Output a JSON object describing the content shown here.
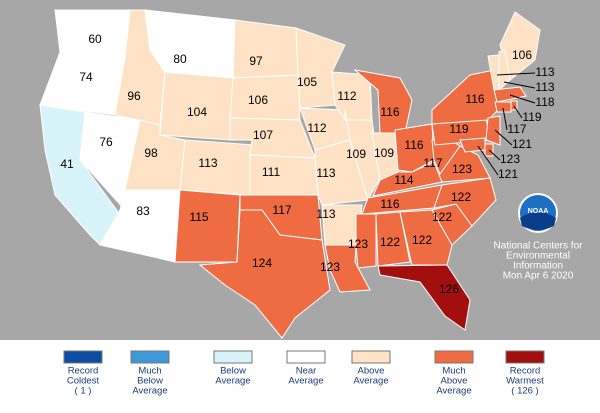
{
  "states": [
    {
      "rank": 60,
      "color": "#ffffff"
    },
    {
      "rank": 74,
      "color": "#ffffff"
    },
    {
      "rank": 41,
      "color": "#d9f3fb"
    },
    {
      "rank": 76,
      "color": "#ffffff"
    },
    {
      "rank": 96,
      "color": "#fde2c5"
    },
    {
      "rank": 80,
      "color": "#ffffff"
    },
    {
      "rank": 104,
      "color": "#fde2c5"
    },
    {
      "rank": 98,
      "color": "#fde2c5"
    },
    {
      "rank": 83,
      "color": "#ffffff"
    },
    {
      "rank": 113,
      "color": "#fde2c5"
    },
    {
      "rank": 115,
      "color": "#ef6b42"
    },
    {
      "rank": 97,
      "color": "#fde2c5"
    },
    {
      "rank": 106,
      "color": "#fde2c5"
    },
    {
      "rank": 107,
      "color": "#fde2c5"
    },
    {
      "rank": 111,
      "color": "#fde2c5"
    },
    {
      "rank": 117,
      "color": "#ef6b42"
    },
    {
      "rank": 124,
      "color": "#ef6b42"
    },
    {
      "rank": 105,
      "color": "#fde2c5"
    },
    {
      "rank": 112,
      "color": "#fde2c5"
    },
    {
      "rank": 113,
      "color": "#fde2c5"
    },
    {
      "rank": 113,
      "color": "#fde2c5"
    },
    {
      "rank": 123,
      "color": "#ef6b42"
    },
    {
      "rank": 112,
      "color": "#fde2c5"
    },
    {
      "rank": 109,
      "color": "#fde2c5"
    },
    {
      "rank": 116,
      "color": "#ef6b42"
    },
    {
      "rank": 109,
      "color": "#fde2c5"
    },
    {
      "rank": 116,
      "color": "#ef6b42"
    },
    {
      "rank": 114,
      "color": "#ef6b42"
    },
    {
      "rank": 116,
      "color": "#ef6b42"
    },
    {
      "rank": 123,
      "color": "#ef6b42"
    },
    {
      "rank": 122,
      "color": "#ef6b42"
    },
    {
      "rank": 122,
      "color": "#ef6b42"
    },
    {
      "rank": 126,
      "color": "#a30e0e"
    },
    {
      "rank": 122,
      "color": "#ef6b42"
    },
    {
      "rank": 122,
      "color": "#ef6b42"
    },
    {
      "rank": 123,
      "color": "#ef6b42"
    },
    {
      "rank": 117,
      "color": "#ef6b42"
    },
    {
      "rank": 119,
      "color": "#ef6b42"
    },
    {
      "rank": 116,
      "color": "#ef6b42"
    },
    {
      "rank": 106,
      "color": "#fde2c5"
    },
    {
      "rank": 113,
      "color": "#fde2c5"
    },
    {
      "rank": 113,
      "color": "#fde2c5"
    },
    {
      "rank": 118,
      "color": "#ef6b42"
    },
    {
      "rank": 119,
      "color": "#ef6b42"
    },
    {
      "rank": 117,
      "color": "#ef6b42"
    },
    {
      "rank": 121,
      "color": "#ef6b42"
    },
    {
      "rank": 123,
      "color": "#ef6b42"
    },
    {
      "rank": 121,
      "color": "#ef6b42"
    }
  ],
  "legend": [
    {
      "lines": [
        "Record",
        "Coldest",
        "( 1 )"
      ],
      "color": "#0c4ca3"
    },
    {
      "lines": [
        "Much",
        "Below",
        "Average"
      ],
      "color": "#3d98d8"
    },
    {
      "lines": [
        "Below",
        "Average"
      ],
      "color": "#d9f3fb"
    },
    {
      "lines": [
        "Near",
        "Average"
      ],
      "color": "#ffffff"
    },
    {
      "lines": [
        "Above",
        "Average"
      ],
      "color": "#fde2c5"
    },
    {
      "lines": [
        "Much",
        "Above",
        "Average"
      ],
      "color": "#ef6b42"
    },
    {
      "lines": [
        "Record",
        "Warmest",
        "( 126 )"
      ],
      "color": "#a30e0e"
    }
  ],
  "credit": {
    "logo": "NOAA",
    "lines": [
      "National Centers for",
      "Environmental",
      "Information",
      "Mon Apr  6 2020"
    ]
  }
}
